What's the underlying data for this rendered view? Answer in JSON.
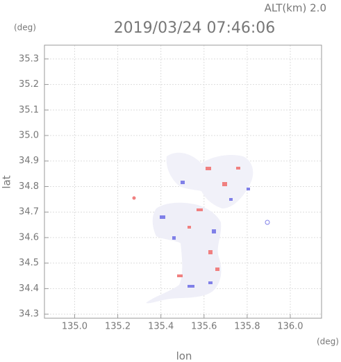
{
  "chart_data": {
    "type": "map",
    "title": "2019/03/24 07:46:06",
    "subtitle": "ALT(km) 2.0",
    "y_unit": "(deg)",
    "x_unit": "(deg)",
    "x_label": "lon",
    "y_label": "lat",
    "xlim": [
      134.86,
      136.145
    ],
    "ylim": [
      34.284,
      35.354
    ],
    "xticks": [
      {
        "value": 135,
        "label": "135.0"
      },
      135.2,
      135.4,
      135.6,
      135.8,
      {
        "value": 136,
        "label": "136.0"
      }
    ],
    "yticks": [
      34.3,
      34.4,
      34.5,
      34.6,
      34.7,
      34.8,
      34.9,
      {
        "value": 35,
        "label": "35.0"
      },
      35.1,
      35.2,
      35.3
    ],
    "grid": true
  }
}
